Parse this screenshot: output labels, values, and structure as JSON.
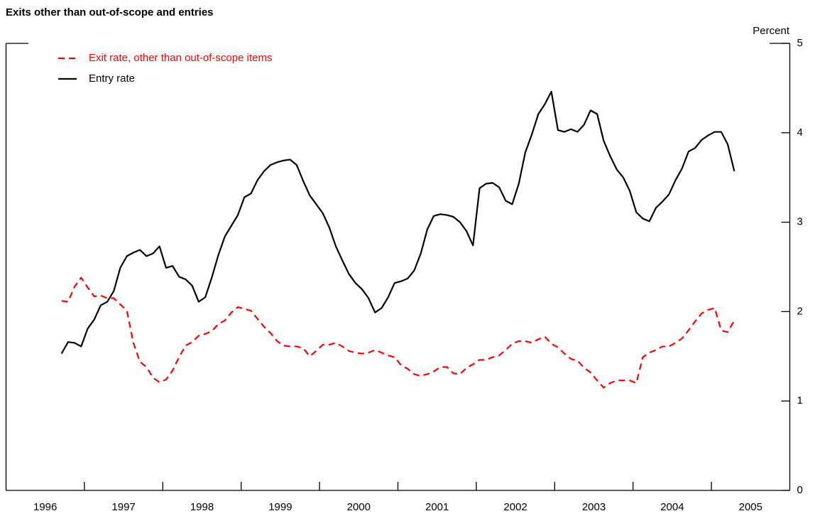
{
  "chart_data": {
    "type": "line",
    "title": "Exits other than out-of-scope and entries",
    "y_label": "Percent",
    "legend": "upper left",
    "xlim": [
      1996,
      2006
    ],
    "xticks": [
      1997,
      1998,
      1999,
      2000,
      2001,
      2002,
      2003,
      2004,
      2005
    ],
    "xtick_labels": [
      {
        "value": 1996.5,
        "label": "1996"
      },
      {
        "value": 1997.5,
        "label": "1997"
      },
      {
        "value": 1998.5,
        "label": "1998"
      },
      {
        "value": 1999.5,
        "label": "1999"
      },
      {
        "value": 2000.5,
        "label": "2000"
      },
      {
        "value": 2001.5,
        "label": "2001"
      },
      {
        "value": 2002.5,
        "label": "2002"
      },
      {
        "value": 2003.5,
        "label": "2003"
      },
      {
        "value": 2004.5,
        "label": "2004"
      },
      {
        "value": 2005.5,
        "label": "2005"
      }
    ],
    "ylim": [
      0,
      5
    ],
    "yticks": [
      0,
      1,
      2,
      3,
      4,
      5
    ],
    "x": [
      1996.708,
      1996.792,
      1996.875,
      1996.958,
      1997.042,
      1997.125,
      1997.208,
      1997.292,
      1997.375,
      1997.458,
      1997.542,
      1997.625,
      1997.708,
      1997.792,
      1997.875,
      1997.958,
      1998.042,
      1998.125,
      1998.208,
      1998.292,
      1998.375,
      1998.458,
      1998.542,
      1998.625,
      1998.708,
      1998.792,
      1998.875,
      1998.958,
      1999.042,
      1999.125,
      1999.208,
      1999.292,
      1999.375,
      1999.458,
      1999.542,
      1999.625,
      1999.708,
      1999.792,
      1999.875,
      1999.958,
      2000.042,
      2000.125,
      2000.208,
      2000.292,
      2000.375,
      2000.458,
      2000.542,
      2000.625,
      2000.708,
      2000.792,
      2000.875,
      2000.958,
      2001.042,
      2001.125,
      2001.208,
      2001.292,
      2001.375,
      2001.458,
      2001.542,
      2001.625,
      2001.708,
      2001.792,
      2001.875,
      2001.958,
      2002.042,
      2002.125,
      2002.208,
      2002.292,
      2002.375,
      2002.458,
      2002.542,
      2002.625,
      2002.708,
      2002.792,
      2002.875,
      2002.958,
      2003.042,
      2003.125,
      2003.208,
      2003.292,
      2003.375,
      2003.458,
      2003.542,
      2003.625,
      2003.708,
      2003.792,
      2003.875,
      2003.958,
      2004.042,
      2004.125,
      2004.208,
      2004.292,
      2004.375,
      2004.458,
      2004.542,
      2004.625,
      2004.708,
      2004.792,
      2004.875,
      2004.958,
      2005.042,
      2005.125,
      2005.208,
      2005.292
    ],
    "series": [
      {
        "name": "Exit rate, other than out-of-scope items",
        "color": "#ff0000",
        "style": "dashed",
        "values": [
          2.12,
          2.11,
          2.28,
          2.38,
          2.27,
          2.17,
          2.18,
          2.15,
          2.15,
          2.08,
          2.01,
          1.65,
          1.44,
          1.38,
          1.26,
          1.21,
          1.24,
          1.34,
          1.49,
          1.62,
          1.66,
          1.73,
          1.75,
          1.78,
          1.86,
          1.9,
          1.99,
          2.05,
          2.03,
          2.01,
          1.92,
          1.83,
          1.76,
          1.67,
          1.62,
          1.61,
          1.61,
          1.59,
          1.5,
          1.56,
          1.63,
          1.63,
          1.65,
          1.61,
          1.56,
          1.54,
          1.53,
          1.54,
          1.57,
          1.54,
          1.51,
          1.49,
          1.4,
          1.36,
          1.3,
          1.28,
          1.3,
          1.33,
          1.38,
          1.38,
          1.31,
          1.3,
          1.37,
          1.41,
          1.46,
          1.46,
          1.49,
          1.51,
          1.57,
          1.64,
          1.67,
          1.67,
          1.65,
          1.69,
          1.72,
          1.64,
          1.6,
          1.53,
          1.47,
          1.45,
          1.37,
          1.32,
          1.23,
          1.15,
          1.2,
          1.23,
          1.23,
          1.23,
          1.2,
          1.49,
          1.54,
          1.57,
          1.61,
          1.61,
          1.65,
          1.7,
          1.79,
          1.89,
          1.98,
          2.02,
          2.04,
          1.79,
          1.77,
          1.9
        ]
      },
      {
        "name": "Entry rate",
        "color": "#000000",
        "style": "solid",
        "values": [
          1.53,
          1.66,
          1.65,
          1.61,
          1.81,
          1.91,
          2.07,
          2.11,
          2.23,
          2.49,
          2.62,
          2.66,
          2.69,
          2.62,
          2.65,
          2.73,
          2.49,
          2.51,
          2.39,
          2.36,
          2.29,
          2.11,
          2.16,
          2.38,
          2.63,
          2.84,
          2.96,
          3.08,
          3.28,
          3.32,
          3.47,
          3.57,
          3.64,
          3.67,
          3.69,
          3.7,
          3.64,
          3.46,
          3.3,
          3.2,
          3.1,
          2.94,
          2.73,
          2.57,
          2.42,
          2.32,
          2.25,
          2.15,
          1.99,
          2.04,
          2.16,
          2.32,
          2.34,
          2.37,
          2.46,
          2.65,
          2.92,
          3.07,
          3.09,
          3.08,
          3.06,
          3.0,
          2.9,
          2.74,
          3.38,
          3.43,
          3.44,
          3.39,
          3.24,
          3.2,
          3.43,
          3.78,
          3.98,
          4.21,
          4.32,
          4.46,
          4.03,
          4.01,
          4.04,
          4.01,
          4.09,
          4.25,
          4.21,
          3.91,
          3.74,
          3.59,
          3.5,
          3.35,
          3.11,
          3.04,
          3.01,
          3.16,
          3.23,
          3.31,
          3.47,
          3.6,
          3.79,
          3.83,
          3.92,
          3.97,
          4.01,
          4.01,
          3.87,
          3.57
        ]
      }
    ]
  }
}
